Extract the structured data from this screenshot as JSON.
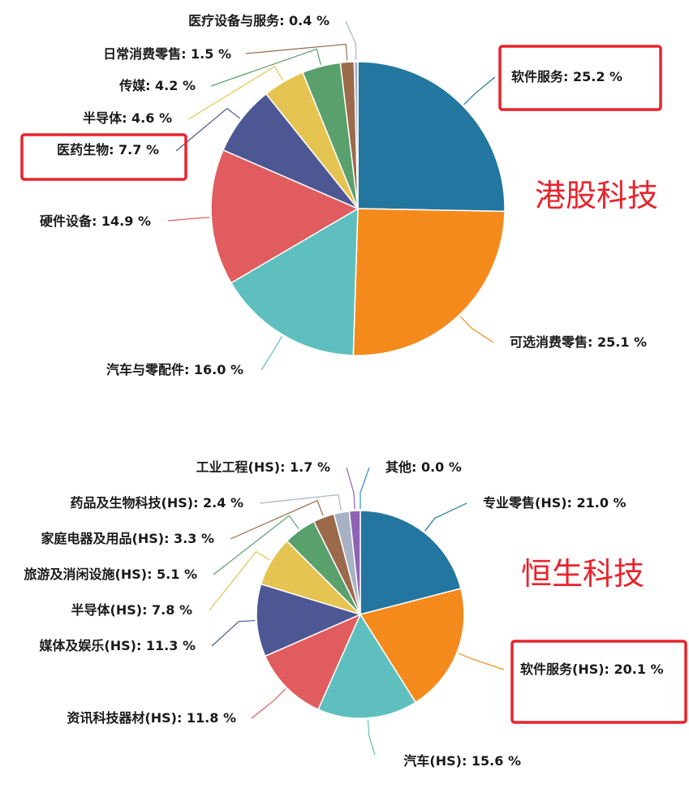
{
  "chart_data": [
    {
      "type": "pie",
      "title": "港股科技",
      "unit": "%",
      "slices": [
        {
          "label": "软件服务",
          "value": 25.2,
          "color": "#23769f",
          "highlight": true
        },
        {
          "label": "可选消费零售",
          "value": 25.1,
          "color": "#f58a1c"
        },
        {
          "label": "汽车与零配件",
          "value": 16.0,
          "color": "#5fbfbf"
        },
        {
          "label": "硬件设备",
          "value": 14.9,
          "color": "#e15c5e"
        },
        {
          "label": "医药生物",
          "value": 7.7,
          "color": "#4d5793",
          "highlight": true
        },
        {
          "label": "半导体",
          "value": 4.6,
          "color": "#e6c452"
        },
        {
          "label": "传媒",
          "value": 4.2,
          "color": "#5aa06c"
        },
        {
          "label": "日常消费零售",
          "value": 1.5,
          "color": "#9b6a4b"
        },
        {
          "label": "医疗设备与服务",
          "value": 0.4,
          "color": "#a7b3c4"
        }
      ]
    },
    {
      "type": "pie",
      "title": "恒生科技",
      "unit": "%",
      "slices": [
        {
          "label": "专业零售(HS)",
          "value": 21.0,
          "color": "#23769f"
        },
        {
          "label": "软件服务(HS)",
          "value": 20.1,
          "color": "#f58a1c",
          "highlight": true
        },
        {
          "label": "汽车(HS)",
          "value": 15.6,
          "color": "#5fbfbf"
        },
        {
          "label": "资讯科技器材(HS)",
          "value": 11.8,
          "color": "#e15c5e"
        },
        {
          "label": "媒体及娱乐(HS)",
          "value": 11.3,
          "color": "#4d5793"
        },
        {
          "label": "半导体(HS)",
          "value": 7.8,
          "color": "#e6c452"
        },
        {
          "label": "旅游及消闲设施(HS)",
          "value": 5.1,
          "color": "#5aa06c"
        },
        {
          "label": "家庭电器及用品(HS)",
          "value": 3.3,
          "color": "#9b6a4b"
        },
        {
          "label": "药品及生物科技(HS)",
          "value": 2.4,
          "color": "#a7b3c4"
        },
        {
          "label": "工业工程(HS)",
          "value": 1.7,
          "color": "#8e63b5"
        },
        {
          "label": "其他",
          "value": 0.0,
          "color": "#2f8fd0"
        }
      ]
    }
  ]
}
